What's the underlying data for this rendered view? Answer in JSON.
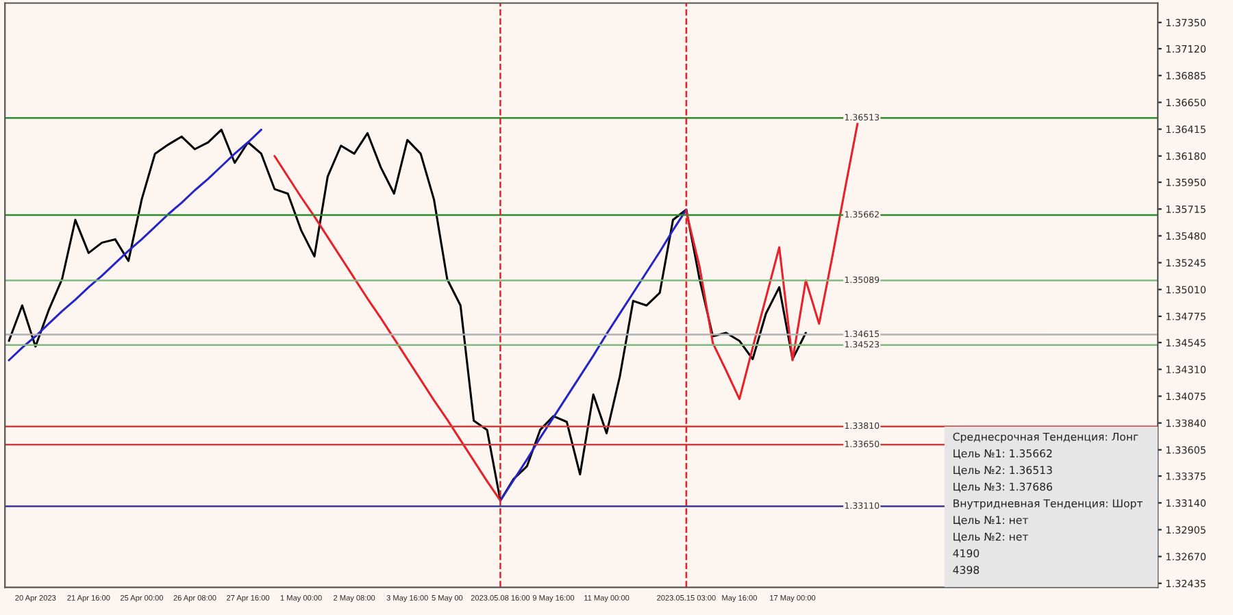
{
  "chart_data": {
    "type": "line",
    "ylim": [
      1.324,
      1.3752
    ],
    "categories": [
      null,
      null,
      "20 Apr 2023",
      null,
      null,
      null,
      "21 Apr 16:00",
      null,
      null,
      null,
      "25 Apr 00:00",
      null,
      null,
      null,
      "26 Apr 08:00",
      null,
      null,
      null,
      "27 Apr 16:00",
      null,
      null,
      null,
      "1 May 00:00",
      null,
      null,
      null,
      "2 May 08:00",
      null,
      null,
      null,
      "3 May 16:00",
      null,
      null,
      "5 May 00",
      null,
      null,
      null,
      "2023.05.08 16:00",
      null,
      null,
      null,
      "9 May 16:00",
      null,
      null,
      null,
      "11 May 00:00",
      null,
      null,
      null,
      null,
      null,
      "2023.05.15 03:00",
      null,
      null,
      null,
      "May 16:00",
      null,
      null,
      null,
      "17 May 00:00",
      null,
      null,
      null,
      null,
      null,
      null,
      null,
      null,
      null,
      null,
      null,
      null,
      null,
      null,
      null,
      null,
      null,
      null,
      null,
      null,
      null,
      null,
      null,
      null,
      null,
      null,
      null
    ],
    "yticks": [
      {
        "value": 1.3735,
        "label": "1.37350"
      },
      {
        "value": 1.3712,
        "label": "1.37120"
      },
      1.36885,
      {
        "value": 1.3665,
        "label": "1.36650"
      },
      1.36415,
      {
        "value": 1.3618,
        "label": "1.36180"
      },
      {
        "value": 1.3595,
        "label": "1.35950"
      },
      1.35715,
      {
        "value": 1.3548,
        "label": "1.35480"
      },
      1.35245,
      {
        "value": 1.3501,
        "label": "1.35010"
      },
      1.34775,
      1.34545,
      {
        "value": 1.3431,
        "label": "1.34310"
      },
      1.34075,
      {
        "value": 1.3384,
        "label": "1.33840"
      },
      1.33605,
      1.33375,
      {
        "value": 1.3314,
        "label": "1.33140"
      },
      1.32905,
      {
        "value": 1.3267,
        "label": "1.32670"
      },
      1.32435
    ],
    "series": [
      {
        "color": "#000000",
        "values": [
          1.3456,
          1.3487,
          1.3451,
          1.3483,
          1.351,
          1.3562,
          1.3533,
          1.3542,
          1.3545,
          1.3526,
          1.358,
          1.362,
          1.3628,
          1.3635,
          1.3624,
          1.363,
          1.3641,
          1.3612,
          1.363,
          1.362,
          1.3589,
          1.3585,
          1.3553,
          1.353,
          1.36,
          1.3627,
          1.362,
          1.3638,
          1.3608,
          1.3585,
          1.3632,
          1.362,
          1.358,
          1.351,
          1.3487,
          1.3386,
          1.3378,
          1.3316,
          1.3335,
          1.3346,
          1.3378,
          1.339,
          1.3385,
          1.3339,
          1.3409,
          1.3375,
          1.3425,
          1.3491,
          1.3487,
          1.3498,
          1.3562,
          1.3571,
          1.351,
          1.346,
          1.3463,
          1.3456,
          1.344,
          1.348,
          1.3503,
          1.344,
          1.3463,
          null,
          null,
          null,
          null,
          null,
          null,
          null,
          null,
          null,
          null,
          null,
          null,
          null,
          null,
          null,
          null,
          null,
          null,
          null,
          null,
          null,
          null,
          null,
          null,
          null,
          null
        ]
      },
      {
        "color": "#e8202a",
        "values": [
          null,
          null,
          null,
          null,
          null,
          null,
          null,
          null,
          null,
          null,
          null,
          null,
          null,
          null,
          null,
          null,
          null,
          null,
          null,
          null,
          1.3618,
          1.36,
          1.3582,
          1.3565,
          1.3547,
          1.3529,
          1.3511,
          1.3493,
          1.3476,
          1.3458,
          1.344,
          1.3422,
          1.3404,
          1.3387,
          1.3369,
          1.3351,
          1.3333,
          1.3316,
          null,
          null,
          null,
          null,
          null,
          null,
          null,
          null,
          null,
          null,
          null,
          null,
          null,
          null,
          null,
          null,
          null,
          null,
          null,
          null,
          null,
          null,
          null,
          null,
          null,
          null,
          null,
          null,
          null,
          null,
          null,
          null,
          null,
          null,
          null,
          null,
          null,
          null,
          null,
          null,
          null,
          null,
          null,
          null,
          null,
          null,
          null,
          null,
          null
        ]
      },
      {
        "color": "#e8202a",
        "values": [
          null,
          null,
          null,
          null,
          null,
          null,
          null,
          null,
          null,
          null,
          null,
          null,
          null,
          null,
          null,
          null,
          null,
          null,
          null,
          null,
          null,
          null,
          null,
          null,
          null,
          null,
          null,
          null,
          null,
          null,
          null,
          null,
          null,
          null,
          null,
          null,
          null,
          null,
          null,
          null,
          null,
          null,
          null,
          null,
          null,
          null,
          null,
          null,
          null,
          null,
          null,
          1.3569,
          1.3521,
          1.3454,
          1.343,
          1.3405,
          1.345,
          1.3494,
          1.3538,
          1.3439,
          1.3509,
          1.3471,
          1.353,
          1.3592,
          1.3653,
          null,
          null,
          null,
          null,
          null,
          null,
          null,
          null,
          null,
          null,
          null,
          null,
          null,
          null,
          null,
          null,
          null,
          null,
          null,
          null,
          null,
          null
        ]
      },
      {
        "color": "#2424c8",
        "values": [
          1.3439,
          1.345,
          1.346,
          1.3471,
          1.3482,
          1.3492,
          1.3503,
          1.3513,
          1.3524,
          1.3535,
          1.3545,
          1.3556,
          1.3567,
          1.3577,
          1.3588,
          1.3598,
          1.3609,
          1.362,
          1.363,
          1.3641,
          null,
          null,
          null,
          null,
          null,
          null,
          null,
          null,
          null,
          null,
          null,
          null,
          null,
          null,
          null,
          null,
          null,
          null,
          null,
          null,
          null,
          null,
          null,
          null,
          null,
          null,
          null,
          null,
          null,
          null,
          null,
          null,
          null,
          null,
          null,
          null,
          null,
          null,
          null,
          null,
          null,
          null,
          null,
          null,
          null,
          null,
          null,
          null,
          null,
          null,
          null,
          null,
          null,
          null,
          null,
          null,
          null,
          null,
          null,
          null,
          null,
          null,
          null,
          null,
          null,
          null,
          null
        ]
      },
      {
        "color": "#2424c8",
        "values": [
          null,
          null,
          null,
          null,
          null,
          null,
          null,
          null,
          null,
          null,
          null,
          null,
          null,
          null,
          null,
          null,
          null,
          null,
          null,
          null,
          null,
          null,
          null,
          null,
          null,
          null,
          null,
          null,
          null,
          null,
          null,
          null,
          null,
          null,
          null,
          null,
          null,
          1.3316,
          1.3334,
          1.3352,
          1.3371,
          1.3389,
          1.3407,
          1.3425,
          1.3443,
          1.3462,
          1.348,
          1.3498,
          1.3516,
          1.3534,
          1.3553,
          1.3571,
          null,
          null,
          null,
          null,
          null,
          null,
          null,
          null,
          null,
          null,
          null,
          null,
          null,
          null,
          null,
          null,
          null,
          null,
          null,
          null,
          null,
          null,
          null,
          null,
          null,
          null,
          null,
          null,
          null,
          null,
          null,
          null,
          null,
          null,
          null
        ]
      }
    ],
    "ref_lines": [
      {
        "axis": "y",
        "value": 1.34615,
        "label": "1.34615",
        "color": "#b0b0b0",
        "line_style": "solid"
      },
      {
        "axis": "y",
        "value": 1.36513,
        "label": "1.36513",
        "color": "#2e8b2e",
        "line_style": "solid"
      },
      {
        "axis": "y",
        "value": 1.35662,
        "label": "1.35662",
        "color": "#2e8b2e",
        "line_style": "solid"
      },
      {
        "axis": "y",
        "value": 1.35089,
        "label": "1.35089",
        "color": "#7fb87f",
        "line_style": "solid"
      },
      {
        "axis": "y",
        "value": 1.34523,
        "label": "1.34523",
        "color": "#7fb87f",
        "line_style": "solid"
      },
      {
        "axis": "y",
        "value": 1.3311,
        "label": "1.33110",
        "color": "#3a3a90",
        "line_style": "solid"
      },
      {
        "axis": "y",
        "value": 1.3381,
        "label": "1.33810",
        "color": "#d04040",
        "line_style": "solid"
      },
      {
        "axis": "y",
        "value": 1.3365,
        "label": "1.33650",
        "color": "#d04040",
        "line_style": "solid"
      },
      {
        "axis": "x",
        "value": "2023.05.08 16:00",
        "color": "#e8202a",
        "line_style": "dashed"
      },
      {
        "axis": "x",
        "value": "2023.05.15 03:00",
        "color": "#e8202a",
        "line_style": "dashed"
      }
    ],
    "annotations": [
      "Среднесрочная Тенденция: Лонг",
      "Цель №1: 1.35662",
      "Цель №2: 1.36513",
      "Цель №3: 1.37686",
      "Внутридневная Тенденция: Шорт",
      "Цель №1: нет",
      "Цель №2: нет",
      "4190",
      "4398"
    ]
  }
}
